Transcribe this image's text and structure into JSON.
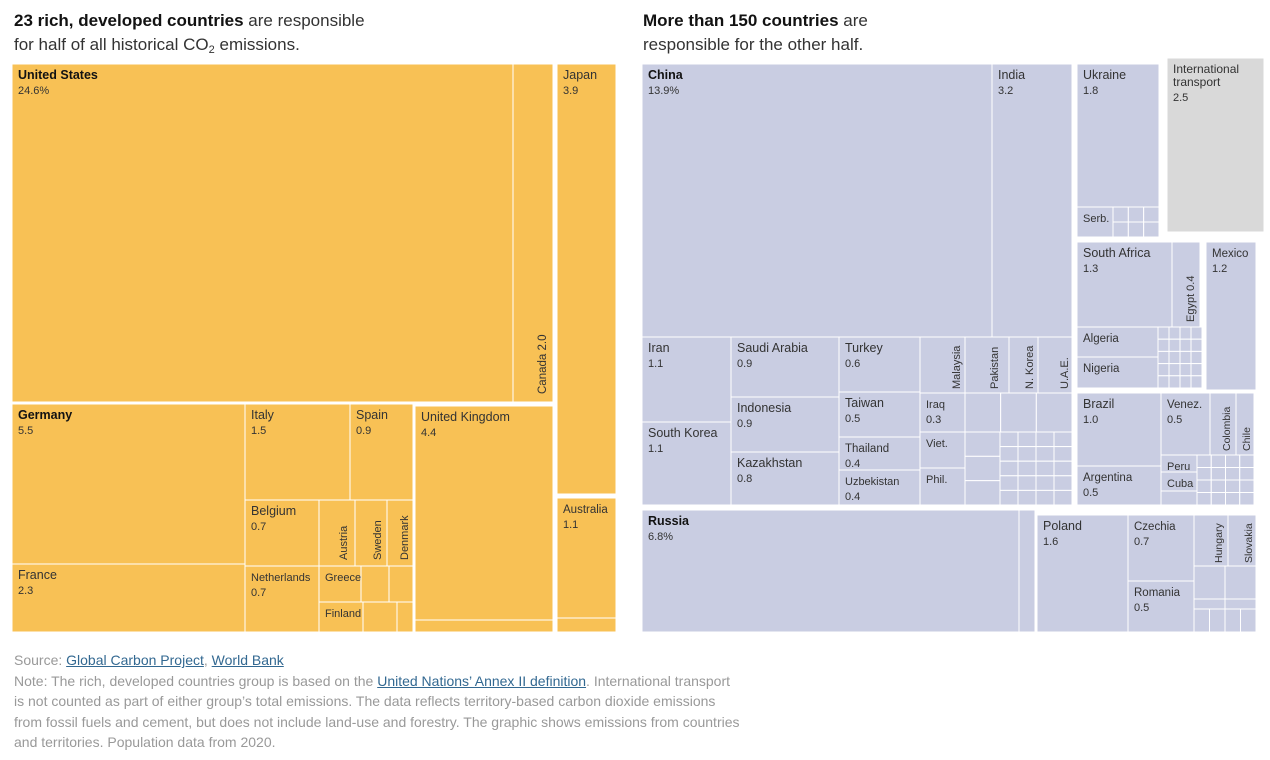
{
  "headings": {
    "left_bold": "23 rich, developed countries",
    "left_rest1": " are responsible",
    "left_rest2": "for half of all historical CO",
    "left_sub": "2",
    "left_rest3": " emissions.",
    "right_bold": "More than 150 countries",
    "right_rest1": " are",
    "right_rest2": "responsible for the other half."
  },
  "colors": {
    "developed": "#f8c155",
    "other": "#c9cde2",
    "transport": "#d9d9d9",
    "border": "#ffffff"
  },
  "chart_data": {
    "type": "treemap",
    "unit": "percent of historical CO2 emissions",
    "groups": [
      {
        "name": "23 rich, developed countries",
        "countries": [
          {
            "name": "United States",
            "value": "24.6%"
          },
          {
            "name": "Canada",
            "value": "2.0"
          },
          {
            "name": "Japan",
            "value": "3.9"
          },
          {
            "name": "Australia",
            "value": "1.1"
          },
          {
            "name": "Germany",
            "value": "5.5"
          },
          {
            "name": "France",
            "value": "2.3"
          },
          {
            "name": "Italy",
            "value": "1.5"
          },
          {
            "name": "Spain",
            "value": "0.9"
          },
          {
            "name": "Belgium",
            "value": "0.7"
          },
          {
            "name": "Austria",
            "value": ""
          },
          {
            "name": "Sweden",
            "value": ""
          },
          {
            "name": "Denmark",
            "value": ""
          },
          {
            "name": "Netherlands",
            "value": "0.7"
          },
          {
            "name": "Greece",
            "value": ""
          },
          {
            "name": "Finland",
            "value": ""
          },
          {
            "name": "United Kingdom",
            "value": "4.4"
          }
        ]
      },
      {
        "name": "More than 150 countries",
        "countries": [
          {
            "name": "China",
            "value": "13.9%"
          },
          {
            "name": "India",
            "value": "3.2"
          },
          {
            "name": "Ukraine",
            "value": "1.8"
          },
          {
            "name": "Serb.",
            "value": ""
          },
          {
            "name": "South Africa",
            "value": "1.3"
          },
          {
            "name": "Egypt",
            "value": "0.4"
          },
          {
            "name": "Mexico",
            "value": "1.2"
          },
          {
            "name": "Algeria",
            "value": ""
          },
          {
            "name": "Nigeria",
            "value": ""
          },
          {
            "name": "Iran",
            "value": "1.1"
          },
          {
            "name": "South Korea",
            "value": "1.1"
          },
          {
            "name": "Saudi Arabia",
            "value": "0.9"
          },
          {
            "name": "Indonesia",
            "value": "0.9"
          },
          {
            "name": "Kazakhstan",
            "value": "0.8"
          },
          {
            "name": "Turkey",
            "value": "0.6"
          },
          {
            "name": "Taiwan",
            "value": "0.5"
          },
          {
            "name": "Thailand",
            "value": "0.4"
          },
          {
            "name": "Uzbekistan",
            "value": "0.4"
          },
          {
            "name": "Malaysia",
            "value": ""
          },
          {
            "name": "Pakistan",
            "value": ""
          },
          {
            "name": "N. Korea",
            "value": ""
          },
          {
            "name": "U.A.E.",
            "value": ""
          },
          {
            "name": "Iraq",
            "value": "0.3"
          },
          {
            "name": "Viet.",
            "value": ""
          },
          {
            "name": "Phil.",
            "value": ""
          },
          {
            "name": "Brazil",
            "value": "1.0"
          },
          {
            "name": "Venez.",
            "value": "0.5"
          },
          {
            "name": "Colombia",
            "value": ""
          },
          {
            "name": "Chile",
            "value": ""
          },
          {
            "name": "Argentina",
            "value": "0.5"
          },
          {
            "name": "Peru",
            "value": ""
          },
          {
            "name": "Cuba",
            "value": ""
          },
          {
            "name": "Russia",
            "value": "6.8%"
          },
          {
            "name": "Poland",
            "value": "1.6"
          },
          {
            "name": "Czechia",
            "value": "0.7"
          },
          {
            "name": "Romania",
            "value": "0.5"
          },
          {
            "name": "Hungary",
            "value": ""
          },
          {
            "name": "Slovakia",
            "value": ""
          }
        ]
      },
      {
        "name": "Not counted",
        "countries": [
          {
            "name": "International transport",
            "value": "2.5"
          }
        ]
      }
    ]
  },
  "notes": {
    "source_prefix": "Source: ",
    "source_link1": "Global Carbon Project",
    "source_sep": ", ",
    "source_link2": "World Bank",
    "note_prefix": "Note: The rich, developed countries group is based on the ",
    "note_link": "United Nations’ Annex II definition",
    "note_rest": ". International transport is not counted as part of either group’s total emissions. The data reflects territory-based carbon dioxide emissions from fossil fuels and cement, but does not include land-use and forestry. The graphic shows emissions from countries and territories. Population data from 2020."
  }
}
